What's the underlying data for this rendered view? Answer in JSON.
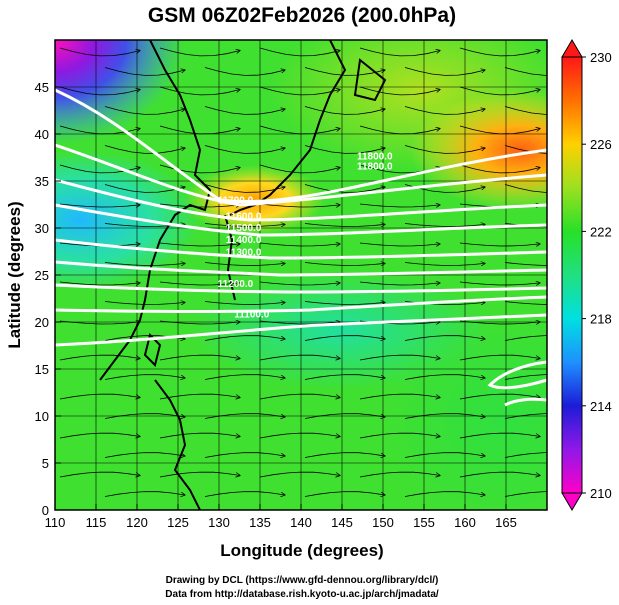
{
  "title": "GSM 06Z02Feb2026 (200.0hPa)",
  "credits": [
    "Drawing by DCL (https://www.gfd-dennou.org/library/dcl/)",
    "Data from http://database.rish.kyoto-u.ac.jp/arch/jmadata/"
  ],
  "chart_data": {
    "type": "heatmap",
    "title": "GSM 06Z02Feb2026 (200.0hPa)",
    "xlabel": "Longitude (degrees)",
    "ylabel": "Latitude  (degrees)",
    "xlim": [
      110,
      170
    ],
    "ylim": [
      0,
      50
    ],
    "x_ticks": [
      110,
      115,
      120,
      125,
      130,
      135,
      140,
      145,
      150,
      155,
      160,
      165
    ],
    "y_ticks": [
      0,
      5,
      10,
      15,
      20,
      25,
      30,
      35,
      40,
      45
    ],
    "grid": true,
    "colorbar": {
      "min": 210,
      "max": 230,
      "tick_labels": [
        210,
        214,
        218,
        222,
        226,
        230
      ],
      "colors": [
        "#ff00c8",
        "#9018e8",
        "#1c1cd8",
        "#1e90ff",
        "#00e0e0",
        "#20e080",
        "#28e028",
        "#9ce020",
        "#ffd000",
        "#ff7000",
        "#ff1818"
      ]
    },
    "contour_labels": [
      {
        "text": "11800.0",
        "lon": 149,
        "lat": 37.3
      },
      {
        "text": "11800.0",
        "lon": 149,
        "lat": 36.2
      },
      {
        "text": "11700.0",
        "lon": 132,
        "lat": 32.6
      },
      {
        "text": "11600.0",
        "lon": 133,
        "lat": 30.9
      },
      {
        "text": "11500.0",
        "lon": 133,
        "lat": 29.7
      },
      {
        "text": "11400.0",
        "lon": 133,
        "lat": 28.4
      },
      {
        "text": "11300.0",
        "lon": 133,
        "lat": 27.1
      },
      {
        "text": "11200.0",
        "lon": 132,
        "lat": 23.7
      },
      {
        "text": "11100.0",
        "lon": 134,
        "lat": 20.5
      }
    ],
    "overlays": [
      "streamlines",
      "vectors",
      "coastlines",
      "geopotential height contours"
    ]
  }
}
